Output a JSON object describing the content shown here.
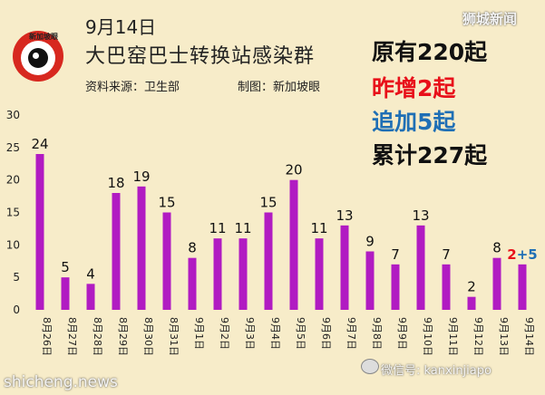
{
  "header": {
    "date": "9月14日",
    "title": "大巴窑巴士转换站感染群",
    "source": "资料来源：卫生部",
    "credit": "制图：新加坡眼",
    "logo_text": "新加坡眼"
  },
  "summary": {
    "original": "原有220起",
    "yesterday": "昨增2起",
    "added": "追加5起",
    "total": "累计227起"
  },
  "watermarks": {
    "top_right": "狮城新闻",
    "bottom_left": "shicheng.news",
    "bottom_right": "微信号: kanxinjiapo"
  },
  "colors": {
    "background": "#f7ecc9",
    "bar": "#b11bc2",
    "label_red": "#e8101a",
    "label_blue": "#1f6fb5"
  },
  "chart_data": {
    "type": "bar",
    "title": "大巴窑巴士转换站感染群",
    "categories": [
      "8月26日",
      "8月27日",
      "8月28日",
      "8月29日",
      "8月30日",
      "8月31日",
      "9月1日",
      "9月2日",
      "9月3日",
      "9月4日",
      "9月5日",
      "9月6日",
      "9月7日",
      "9月8日",
      "9月9日",
      "9月10日",
      "9月11日",
      "9月12日",
      "9月13日",
      "9月14日"
    ],
    "values": [
      24,
      5,
      4,
      18,
      19,
      15,
      8,
      11,
      11,
      15,
      20,
      11,
      13,
      9,
      7,
      13,
      7,
      2,
      8,
      7
    ],
    "data_labels": [
      "24",
      "5",
      "4",
      "18",
      "19",
      "15",
      "8",
      "11",
      "11",
      "15",
      "20",
      "11",
      "13",
      "9",
      "7",
      "13",
      "7",
      "2",
      "8",
      "2+5"
    ],
    "last_label_parts": [
      {
        "text": "2",
        "color": "#e8101a"
      },
      {
        "text": "+5",
        "color": "#1f6fb5"
      }
    ],
    "yticks": [
      "0",
      "5",
      "10",
      "15",
      "20",
      "25",
      "30"
    ],
    "ylim": [
      0,
      30
    ],
    "grid": false
  }
}
